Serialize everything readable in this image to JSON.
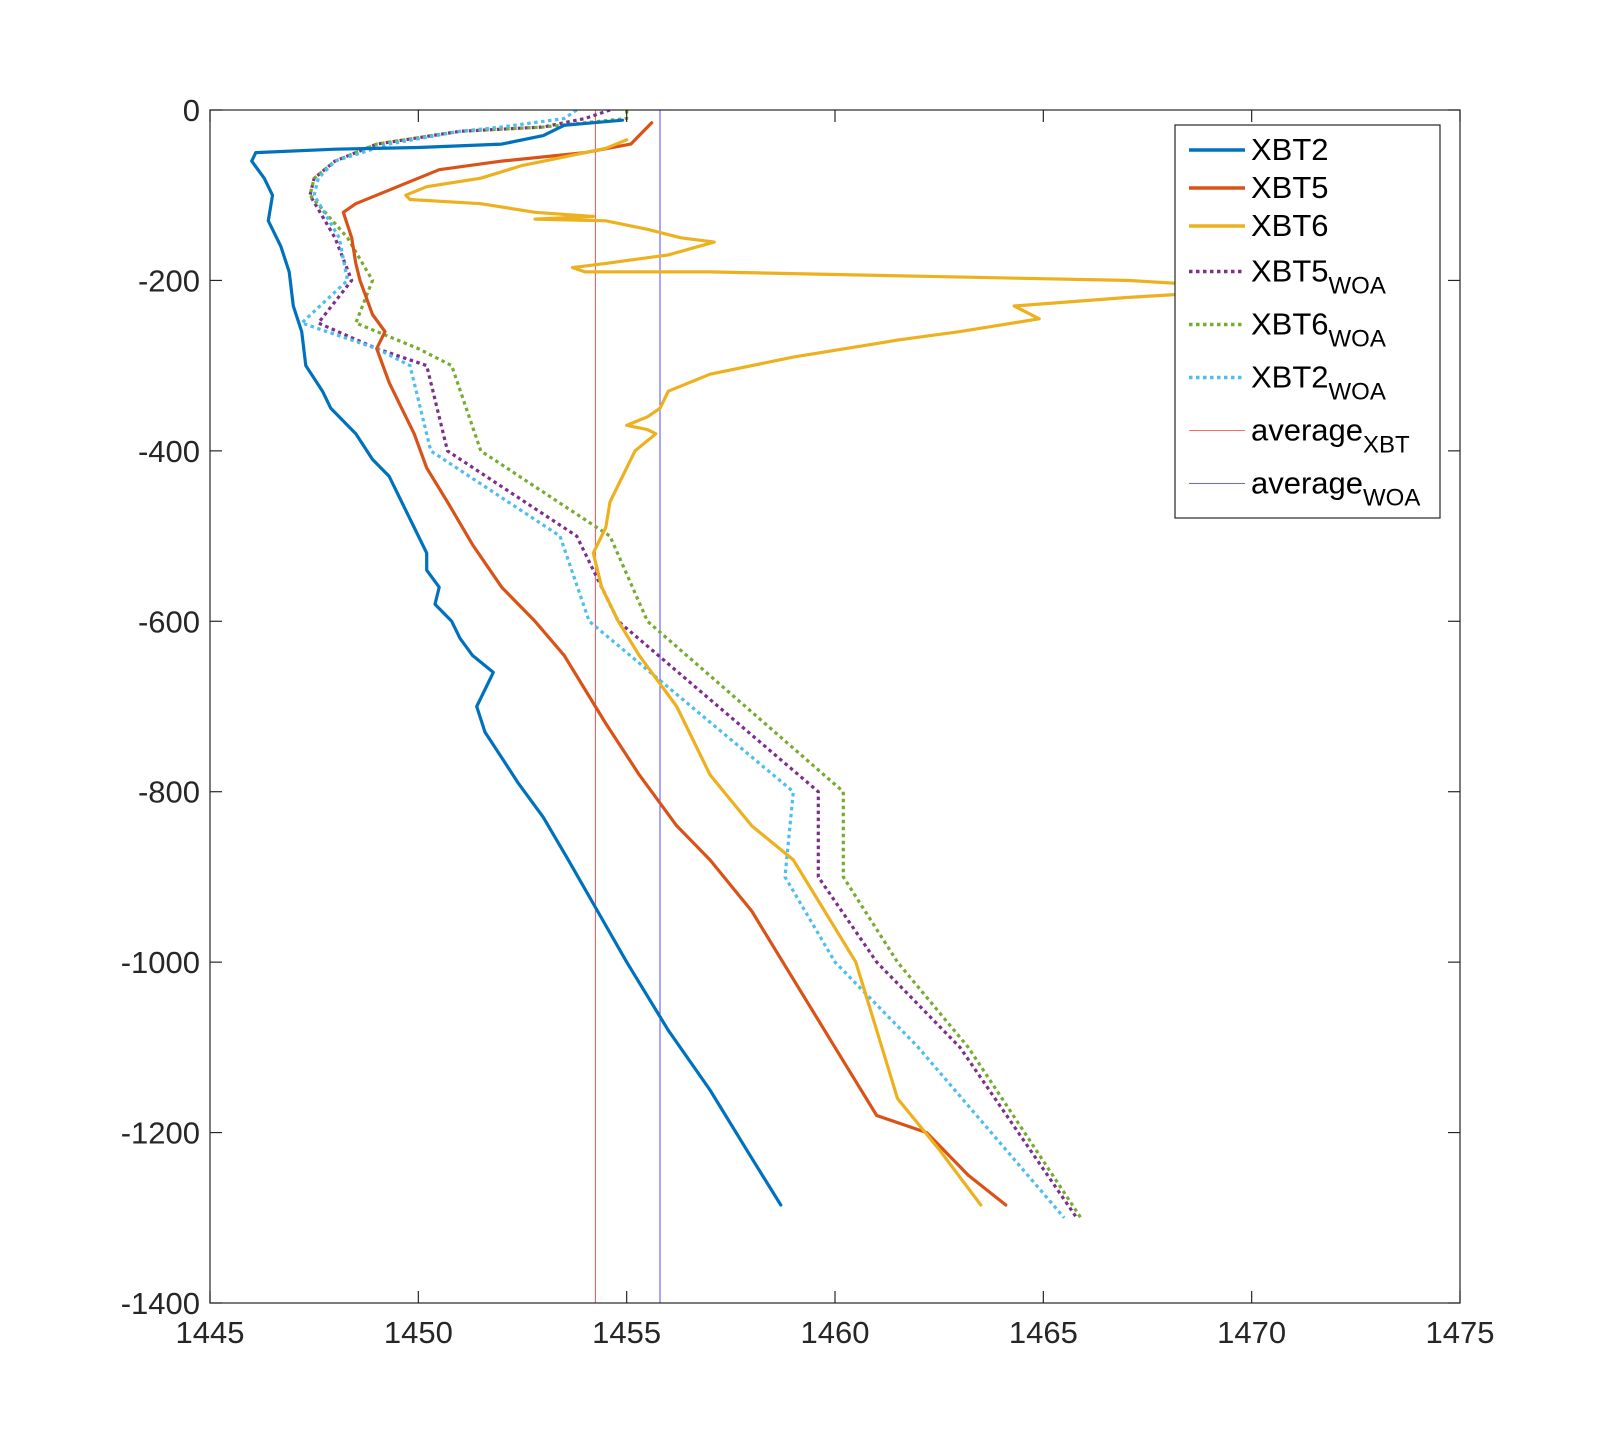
{
  "chart_data": {
    "type": "line",
    "title": "",
    "xlabel": "",
    "ylabel": "",
    "xlim": [
      1445,
      1475
    ],
    "ylim": [
      -1400,
      0
    ],
    "x_ticks": [
      "1445",
      "1450",
      "1455",
      "1460",
      "1465",
      "1470",
      "1475"
    ],
    "y_ticks": [
      "0",
      "-200",
      "-400",
      "-600",
      "-800",
      "-1000",
      "-1200",
      "-1400"
    ],
    "grid": false,
    "legend_position": "top-right",
    "series": [
      {
        "name": "XBT2",
        "legend_base": "XBT2",
        "legend_sub": "",
        "color": "#0072BD",
        "style": "solid",
        "x": [
          1454.9,
          1453.5,
          1453.0,
          1452.0,
          1450.0,
          1448.0,
          1446.1,
          1446.0,
          1446.3,
          1446.5,
          1446.4,
          1446.7,
          1446.9,
          1447.0,
          1447.2,
          1447.3,
          1447.7,
          1447.9,
          1448.5,
          1448.9,
          1449.3,
          1449.6,
          1449.9,
          1450.2,
          1450.2,
          1450.5,
          1450.4,
          1450.8,
          1451.0,
          1451.3,
          1451.8,
          1451.6,
          1451.4,
          1451.6,
          1452.0,
          1452.4,
          1453.0,
          1453.6,
          1454.3,
          1455.0,
          1456.0,
          1457.0,
          1458.0,
          1458.7
        ],
        "y": [
          -12,
          -18,
          -30,
          -40,
          -44,
          -46,
          -50,
          -60,
          -80,
          -100,
          -130,
          -160,
          -190,
          -230,
          -260,
          -300,
          -330,
          -350,
          -380,
          -410,
          -430,
          -460,
          -490,
          -520,
          -540,
          -560,
          -580,
          -600,
          -620,
          -640,
          -660,
          -680,
          -700,
          -730,
          -760,
          -790,
          -830,
          -880,
          -940,
          -1000,
          -1080,
          -1150,
          -1230,
          -1285
        ]
      },
      {
        "name": "XBT5",
        "legend_base": "XBT5",
        "legend_sub": "",
        "color": "#D95319",
        "style": "solid",
        "x": [
          1455.6,
          1455.1,
          1454.0,
          1452.0,
          1450.5,
          1449.5,
          1449.0,
          1448.5,
          1448.2,
          1448.4,
          1448.5,
          1448.6,
          1448.9,
          1449.2,
          1449.0,
          1449.3,
          1449.6,
          1449.9,
          1450.2,
          1450.7,
          1451.3,
          1452.0,
          1452.8,
          1453.5,
          1454.0,
          1454.5,
          1455.3,
          1456.2,
          1457.0,
          1458.0,
          1459.0,
          1460.0,
          1461.0,
          1462.2,
          1463.2,
          1464.1
        ],
        "y": [
          -15,
          -40,
          -50,
          -60,
          -70,
          -90,
          -100,
          -110,
          -120,
          -150,
          -180,
          -200,
          -240,
          -260,
          -280,
          -320,
          -350,
          -380,
          -420,
          -460,
          -510,
          -560,
          -600,
          -640,
          -680,
          -720,
          -780,
          -840,
          -880,
          -940,
          -1020,
          -1100,
          -1180,
          -1200,
          -1250,
          -1285
        ]
      },
      {
        "name": "XBT6",
        "legend_base": "XBT6",
        "legend_sub": "",
        "color": "#EDB120",
        "style": "solid",
        "x": [
          1455.0,
          1454.5,
          1453.5,
          1452.5,
          1451.5,
          1450.2,
          1449.7,
          1449.8,
          1451.5,
          1452.8,
          1454.2,
          1452.8,
          1454.5,
          1455.5,
          1456.3,
          1457.1,
          1456.0,
          1454.5,
          1453.7,
          1454.0,
          1457.0,
          1462.0,
          1467.0,
          1470.5,
          1467.0,
          1464.3,
          1464.9,
          1463.0,
          1461.5,
          1459.0,
          1457.0,
          1456.0,
          1455.8,
          1455.5,
          1455.0,
          1455.5,
          1455.7,
          1455.2,
          1454.8,
          1454.6,
          1454.5,
          1454.2,
          1454.4,
          1454.8,
          1455.3,
          1456.2,
          1457.0,
          1458.0,
          1459.0,
          1459.5,
          1460.0,
          1460.5,
          1461.0,
          1461.5,
          1462.5,
          1463.5
        ],
        "y": [
          -35,
          -45,
          -55,
          -65,
          -80,
          -90,
          -100,
          -105,
          -110,
          -120,
          -125,
          -128,
          -130,
          -140,
          -150,
          -155,
          -170,
          -180,
          -185,
          -190,
          -190,
          -195,
          -200,
          -210,
          -220,
          -230,
          -245,
          -260,
          -270,
          -290,
          -310,
          -330,
          -350,
          -360,
          -370,
          -375,
          -380,
          -400,
          -440,
          -460,
          -490,
          -520,
          -560,
          -600,
          -640,
          -700,
          -780,
          -840,
          -880,
          -920,
          -960,
          -1000,
          -1080,
          -1160,
          -1220,
          -1285
        ]
      },
      {
        "name": "XBT5WOA",
        "legend_base": "XBT5",
        "legend_sub": "WOA",
        "color": "#7E2F8E",
        "style": "dotted",
        "x": [
          1454.6,
          1454.0,
          1453.0,
          1451.0,
          1449.0,
          1448.0,
          1447.5,
          1447.4,
          1448.0,
          1448.4,
          1447.6,
          1449.0,
          1450.2,
          1450.7,
          1453.8,
          1454.8,
          1459.6,
          1459.6,
          1461.0,
          1463.0,
          1465.8
        ],
        "y": [
          0,
          -10,
          -20,
          -25,
          -40,
          -60,
          -80,
          -100,
          -150,
          -200,
          -250,
          -280,
          -300,
          -400,
          -500,
          -600,
          -800,
          -900,
          -1000,
          -1100,
          -1300
        ]
      },
      {
        "name": "XBT6WOA",
        "legend_base": "XBT6",
        "legend_sub": "WOA",
        "color": "#77AC30",
        "style": "dotted",
        "x": [
          1455.0,
          1455.0,
          1453.0,
          1451.0,
          1449.0,
          1448.0,
          1447.5,
          1447.4,
          1448.3,
          1448.9,
          1448.5,
          1450.0,
          1450.8,
          1451.5,
          1454.6,
          1455.5,
          1460.2,
          1460.2,
          1461.5,
          1463.2,
          1465.9
        ],
        "y": [
          0,
          -10,
          -20,
          -25,
          -40,
          -60,
          -80,
          -100,
          -150,
          -200,
          -250,
          -280,
          -300,
          -400,
          -500,
          -600,
          -800,
          -900,
          -1000,
          -1100,
          -1300
        ]
      },
      {
        "name": "XBT2WOA",
        "legend_base": "XBT2",
        "legend_sub": "WOA",
        "color": "#4DBEEE",
        "style": "dotted",
        "x": [
          1453.8,
          1453.5,
          1452.0,
          1451.0,
          1449.3,
          1448.0,
          1447.6,
          1447.5,
          1448.1,
          1448.3,
          1447.2,
          1449.0,
          1449.8,
          1450.3,
          1453.4,
          1454.1,
          1459.0,
          1458.8,
          1460.0,
          1462.0,
          1465.5
        ],
        "y": [
          0,
          -10,
          -20,
          -25,
          -40,
          -60,
          -80,
          -100,
          -150,
          -200,
          -250,
          -280,
          -300,
          -400,
          -500,
          -600,
          -800,
          -900,
          -1000,
          -1100,
          -1300
        ]
      }
    ],
    "vlines": [
      {
        "name": "averageXBT",
        "legend_base": "average",
        "legend_sub": "XBT",
        "color": "#FF0000",
        "x": 1454.25
      },
      {
        "name": "averageWOA",
        "legend_base": "average",
        "legend_sub": "WOA",
        "color": "#0000FF",
        "x": 1455.8
      }
    ]
  }
}
